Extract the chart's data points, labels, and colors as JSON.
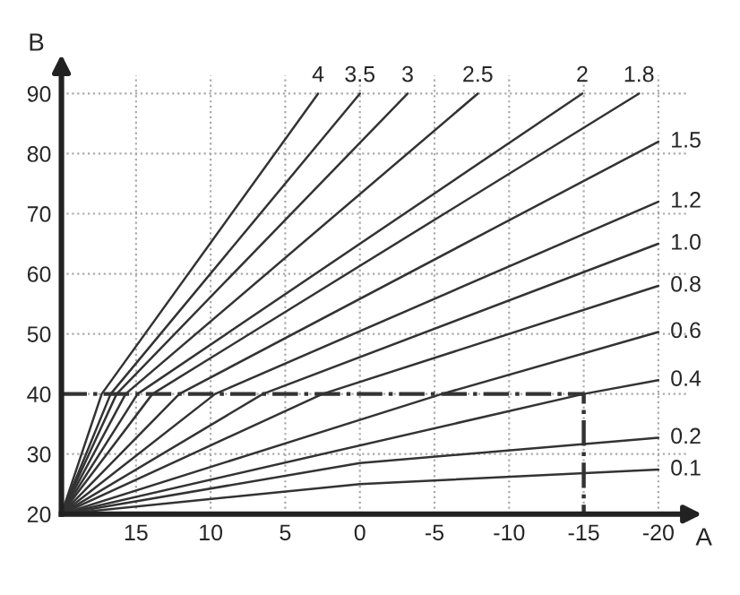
{
  "chart_data": {
    "type": "line",
    "xlabel": "A",
    "ylabel": "B",
    "xlim": [
      20,
      -22
    ],
    "ylim": [
      20,
      93
    ],
    "xticks": [
      15,
      10,
      5,
      0,
      -5,
      -10,
      -15,
      -20
    ],
    "yticks": [
      20,
      30,
      40,
      50,
      60,
      70,
      80,
      90
    ],
    "grid": true,
    "marker": "none",
    "line_style": "solid",
    "series": [
      {
        "name": "4",
        "color": "#333333",
        "x": [
          20,
          17.3,
          2.8
        ],
        "values": [
          20,
          40,
          90
        ]
      },
      {
        "name": "3.5",
        "color": "#333333",
        "x": [
          20,
          16.7,
          0
        ],
        "values": [
          20,
          40,
          90
        ]
      },
      {
        "name": "3",
        "color": "#333333",
        "x": [
          20,
          16.3,
          -3.2
        ],
        "values": [
          20,
          40,
          90
        ]
      },
      {
        "name": "2.5",
        "color": "#333333",
        "x": [
          20,
          15.7,
          -7.9
        ],
        "values": [
          20,
          40,
          90
        ]
      },
      {
        "name": "2",
        "color": "#333333",
        "x": [
          20,
          14.9,
          -14.9
        ],
        "values": [
          20,
          40,
          90
        ]
      },
      {
        "name": "1.8",
        "color": "#333333",
        "x": [
          20,
          13.9,
          -18.7
        ],
        "values": [
          20,
          40,
          90
        ]
      },
      {
        "name": "1.5",
        "color": "#333333",
        "x": [
          20,
          12.1,
          -20
        ],
        "values": [
          20,
          40,
          82
        ]
      },
      {
        "name": "1.2",
        "color": "#333333",
        "x": [
          20,
          9.7,
          -20
        ],
        "values": [
          20,
          40,
          72
        ]
      },
      {
        "name": "1.0",
        "color": "#333333",
        "x": [
          20,
          6.5,
          -20
        ],
        "values": [
          20,
          40,
          65
        ]
      },
      {
        "name": "0.8",
        "color": "#333333",
        "x": [
          20,
          2.5,
          -20
        ],
        "values": [
          20,
          40,
          58
        ]
      },
      {
        "name": "0.6",
        "color": "#333333",
        "x": [
          20,
          -5.5,
          -20
        ],
        "values": [
          20,
          40,
          50.3
        ]
      },
      {
        "name": "0.4",
        "color": "#333333",
        "x": [
          20,
          -15,
          -20
        ],
        "values": [
          20,
          40,
          42.3
        ]
      },
      {
        "name": "0.2",
        "color": "#333333",
        "x": [
          20,
          0,
          -20
        ],
        "values": [
          20,
          28.5,
          32.7
        ]
      },
      {
        "name": "0.1",
        "color": "#333333",
        "x": [
          20,
          0,
          -20
        ],
        "values": [
          20,
          25,
          27.4
        ]
      },
      {
        "color": "#333333",
        "line_style": "dashed",
        "x": [
          20,
          -15,
          -15
        ],
        "values": [
          40,
          40,
          20
        ]
      }
    ]
  }
}
